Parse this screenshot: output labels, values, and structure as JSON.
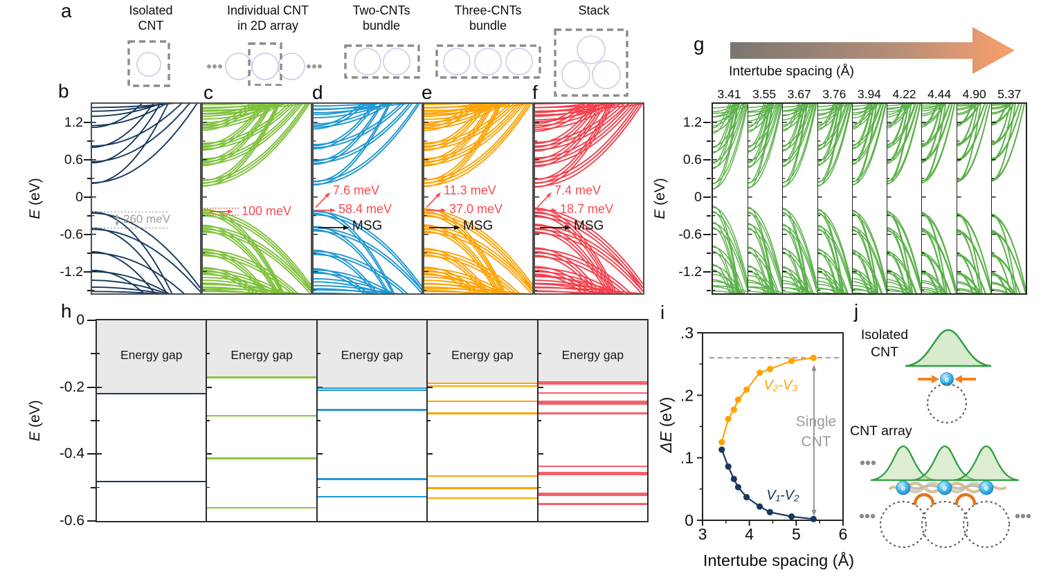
{
  "panel_letters": {
    "a": "a",
    "b": "b",
    "c": "c",
    "d": "d",
    "e": "e",
    "f": "f",
    "g": "g",
    "h": "h",
    "i": "i",
    "j": "j"
  },
  "panel_a": {
    "schematics": [
      {
        "caption_line1": "Isolated",
        "caption_line2": "CNT"
      },
      {
        "caption_line1": "Individual CNT",
        "caption_line2": "in 2D array"
      },
      {
        "caption_line1": "Two-CNTs",
        "caption_line2": "bundle"
      },
      {
        "caption_line1": "Three-CNTs",
        "caption_line2": "bundle"
      },
      {
        "caption_line1": "Stack",
        "caption_line2": ""
      }
    ]
  },
  "band_axis": {
    "label_e": "E",
    "label_unit": " (eV)",
    "ticks": [
      "1.2",
      "0.6",
      "0",
      "-0.6",
      "-1.2"
    ]
  },
  "panel_g": {
    "arrow_label": "Intertube spacing (Å)",
    "spacings": [
      "3.41",
      "3.55",
      "3.67",
      "3.76",
      "3.94",
      "4.22",
      "4.44",
      "4.90",
      "5.37"
    ]
  },
  "panel_h": {
    "ylabel_e": "E",
    "ylabel_unit": " (eV)",
    "yticks": [
      "0",
      "-0.2",
      "-0.4",
      "-0.6"
    ]
  },
  "panel_i": {
    "ylabel_e": "ΔE",
    "ylabel_unit": " (eV)",
    "xlabel": "Intertube spacing (Å)"
  },
  "panel_j": {
    "isolated_line1": "Isolated",
    "isolated_line2": "CNT",
    "array_label": "CNT array",
    "electron_symbol": "e"
  },
  "colors": {
    "navy": "#17385c",
    "array_green": "#7fc13d",
    "bundle2_blue": "#1e97d3",
    "bundle3_orange": "#ffa200",
    "stack_red": "#f4414d",
    "g_green": "#5bb04a",
    "h_red": "#f4606a",
    "annotation_red": "#fb4a50",
    "annotation_gray": "#9e9e9e",
    "energy_gap_fill": "#e9e9e9",
    "dashed_box_gray": "#8c8c8c",
    "cnt_circle_blue": "#c3cde6"
  },
  "chart_data": [
    {
      "id": "band_structures_b_to_f",
      "type": "line",
      "subtype": "band-structure",
      "ylabel": "E (eV)",
      "yticks": [
        1.2,
        0.6,
        0,
        -0.6,
        -1.2
      ],
      "ylim": [
        -1.55,
        1.5
      ],
      "grid": false,
      "panels": [
        {
          "id": "b",
          "system": "Isolated CNT",
          "color": "#17385c",
          "multiplicity": 1,
          "split": 0,
          "annotations": {
            "gap": "260 meV",
            "E_upper": -0.24,
            "E_lower": -0.5
          }
        },
        {
          "id": "c",
          "system": "Individual CNT in 2D array",
          "color": "#7fc13d",
          "multiplicity": 3,
          "split": 0.045,
          "annotations": {
            "gap": "100 meV",
            "E_upper": -0.18,
            "E_lower": -0.29
          }
        },
        {
          "id": "d",
          "system": "Two-CNTs bundle",
          "color": "#1e97d3",
          "multiplicity": 2,
          "split": 0.05,
          "annotations": {
            "gap1": "7.6 meV",
            "gap2": "58.4 meV",
            "msg": "MSG"
          }
        },
        {
          "id": "e",
          "system": "Three-CNTs bundle",
          "color": "#ffa200",
          "multiplicity": 3,
          "split": 0.05,
          "annotations": {
            "gap1": "11.3 meV",
            "gap2": "37.0 meV",
            "msg": "MSG"
          }
        },
        {
          "id": "f",
          "system": "Stack",
          "color": "#f4414d",
          "multiplicity": 3,
          "split": 0.06,
          "annotations": {
            "gap1": "7.4 meV",
            "gap2": "18.7 meV",
            "msg": "MSG"
          }
        }
      ],
      "band_template": {
        "conduction": [
          [
            0.22,
            2.6
          ],
          [
            0.23,
            1.35
          ],
          [
            0.55,
            2.4
          ],
          [
            0.57,
            1.15
          ],
          [
            0.8,
            2.2
          ],
          [
            0.82,
            1.0
          ],
          [
            1.12,
            1.8
          ],
          [
            1.15,
            0.75
          ],
          [
            1.3,
            0.5
          ],
          [
            1.38,
            0.28
          ],
          [
            1.44,
            0.12
          ]
        ],
        "valence": [
          [
            -0.24,
            2.4
          ],
          [
            -0.26,
            1.2
          ],
          [
            -0.5,
            2.2
          ],
          [
            -0.52,
            1.0
          ],
          [
            -0.88,
            2.0
          ],
          [
            -0.9,
            0.9
          ],
          [
            -1.18,
            1.6
          ],
          [
            -1.2,
            0.7
          ],
          [
            -1.34,
            0.45
          ],
          [
            -1.45,
            0.25
          ],
          [
            -1.52,
            0.1
          ]
        ]
      }
    },
    {
      "id": "band_structures_g",
      "type": "line",
      "subtype": "band-structure-series",
      "system": "CNT array at varying intertube spacing",
      "color": "#5bb04a",
      "xlabel": "Intertube spacing (Å)",
      "spacings": [
        3.41,
        3.55,
        3.67,
        3.76,
        3.94,
        4.22,
        4.44,
        4.9,
        5.37
      ],
      "ylabel": "E (eV)",
      "yticks": [
        1.2,
        0.6,
        0,
        -0.6,
        -1.2
      ],
      "ylim": [
        -1.55,
        1.5
      ]
    },
    {
      "id": "energy_levels_h",
      "type": "line",
      "subtype": "energy-levels",
      "ylabel": "E (eV)",
      "ylim": [
        -0.6,
        0
      ],
      "yticks": [
        0,
        -0.2,
        -0.4,
        -0.6
      ],
      "gap_label": "Energy gap",
      "panels": [
        {
          "system": "Isolated CNT",
          "color": "#17385c",
          "levels": [
            -0.219,
            -0.482
          ]
        },
        {
          "system": "Individual CNT in 2D array",
          "color": "#8ac33e",
          "levels": [
            -0.171,
            -0.285,
            -0.413,
            -0.561
          ]
        },
        {
          "system": "Two-CNTs bundle",
          "color": "#1e97d3",
          "levels": [
            -0.203,
            -0.209,
            -0.268,
            -0.475,
            -0.528
          ]
        },
        {
          "system": "Three-CNTs bundle",
          "color": "#ffa200",
          "levels": [
            -0.188,
            -0.196,
            -0.242,
            -0.278,
            -0.465,
            -0.502,
            -0.532
          ]
        },
        {
          "system": "Stack",
          "color": "#f4606a",
          "levels": [
            -0.185,
            -0.19,
            -0.217,
            -0.243,
            -0.249,
            -0.278,
            -0.436,
            -0.456,
            -0.462,
            -0.518,
            -0.524,
            -0.549
          ]
        }
      ]
    },
    {
      "id": "splitting_vs_spacing_i",
      "type": "scatter",
      "xlabel": "Intertube spacing (Å)",
      "ylabel": "ΔE (eV)",
      "xlim": [
        3,
        6
      ],
      "ylim": [
        0,
        0.3
      ],
      "xticks": [
        3,
        4,
        5,
        6
      ],
      "yticks": [
        0,
        0.1,
        0.2,
        0.3
      ],
      "x": [
        3.41,
        3.55,
        3.67,
        3.76,
        3.94,
        4.22,
        4.44,
        4.9,
        5.37
      ],
      "series": [
        {
          "name": "V₂-V₃",
          "color": "#ffa200",
          "values": [
            0.125,
            0.162,
            0.177,
            0.193,
            0.209,
            0.236,
            0.242,
            0.255,
            0.26
          ]
        },
        {
          "name": "V₁-V₂",
          "color": "#17385c",
          "values": [
            0.113,
            0.086,
            0.066,
            0.053,
            0.037,
            0.022,
            0.013,
            0.006,
            0.002
          ]
        }
      ],
      "reference_line": {
        "value": 0.26,
        "label": "Single CNT",
        "label_lines": [
          "Single",
          "CNT"
        ]
      }
    }
  ]
}
